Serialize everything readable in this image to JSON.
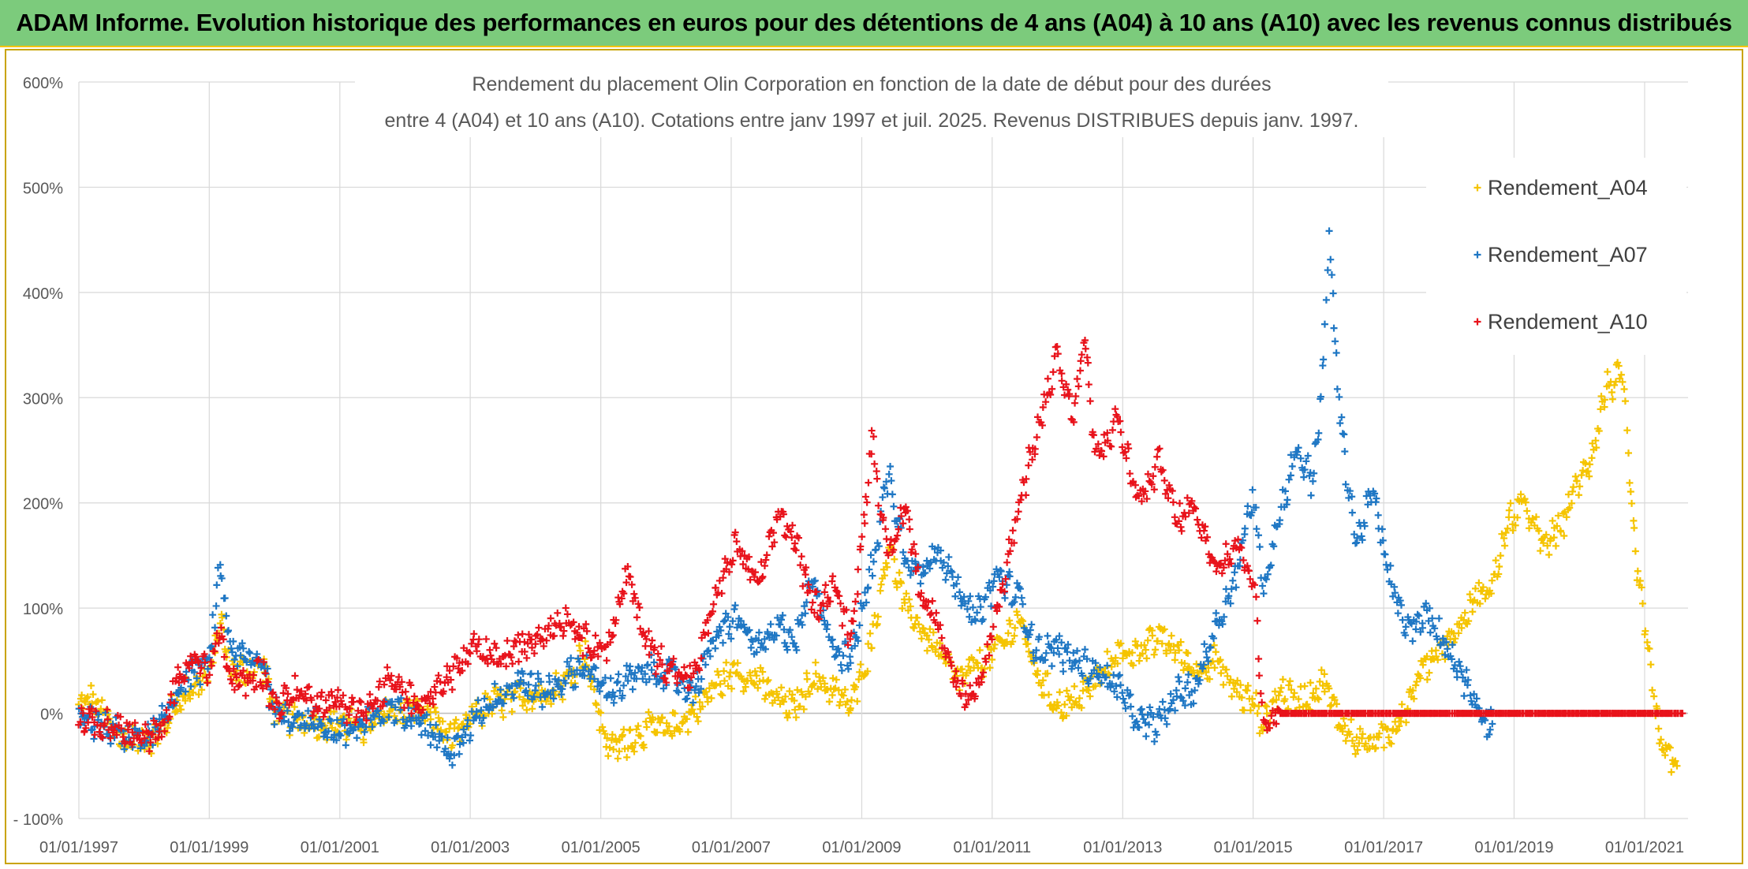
{
  "banner": {
    "title": "ADAM Informe. Evolution historique des performances en euros pour des détentions de 4 ans (A04) à 10 ans (A10) avec les revenus connus distribués"
  },
  "colors": {
    "banner_bg": "#7ccb7c",
    "A04": "#f5c400",
    "A07": "#1f77c4",
    "A10": "#e8131b",
    "grid": "#d9d9d9"
  },
  "chart_data": {
    "type": "scatter",
    "title_line1": "Rendement du placement Olin Corporation en fonction de la date de début pour des durées",
    "title_line2": "entre 4 (A04) et 10 ans (A10). Cotations entre janv 1997 et juil. 2025. Revenus DISTRIBUES depuis janv. 1997.",
    "xlabel": "",
    "ylabel": "",
    "xlim": [
      "1997-01-01",
      "2021-09-01"
    ],
    "ylim": [
      -100,
      600
    ],
    "grid": true,
    "legend_position": "top-right",
    "y_ticks": [
      "600%",
      "500%",
      "400%",
      "300%",
      "200%",
      "100%",
      "0%",
      "- 100%"
    ],
    "x_ticks": [
      "01/01/1997",
      "01/01/1999",
      "01/01/2001",
      "01/01/2003",
      "01/01/2005",
      "01/01/2007",
      "01/01/2009",
      "01/01/2011",
      "01/01/2013",
      "01/01/2015",
      "01/01/2017",
      "01/01/2019",
      "01/01/2021"
    ],
    "marker": "+",
    "series": [
      {
        "name": "Rendement_A04",
        "color": "#f5c400",
        "points": [
          [
            "1997-01-01",
            5
          ],
          [
            "1997-03-01",
            15
          ],
          [
            "1997-06-01",
            -5
          ],
          [
            "1997-09-01",
            -25
          ],
          [
            "1998-01-01",
            -25
          ],
          [
            "1998-04-01",
            -20
          ],
          [
            "1998-07-01",
            10
          ],
          [
            "1998-10-01",
            25
          ],
          [
            "1999-01-01",
            35
          ],
          [
            "1999-03-01",
            90
          ],
          [
            "1999-05-01",
            40
          ],
          [
            "1999-08-01",
            40
          ],
          [
            "1999-11-01",
            45
          ],
          [
            "2000-01-01",
            0
          ],
          [
            "2000-04-01",
            -5
          ],
          [
            "2000-08-01",
            -10
          ],
          [
            "2001-01-01",
            -10
          ],
          [
            "2001-06-01",
            -15
          ],
          [
            "2001-10-01",
            0
          ],
          [
            "2002-03-01",
            5
          ],
          [
            "2002-07-01",
            -10
          ],
          [
            "2002-10-01",
            -25
          ],
          [
            "2003-02-01",
            0
          ],
          [
            "2003-06-01",
            10
          ],
          [
            "2003-10-01",
            15
          ],
          [
            "2004-03-01",
            20
          ],
          [
            "2004-07-01",
            30
          ],
          [
            "2004-10-01",
            60
          ],
          [
            "2005-01-01",
            -10
          ],
          [
            "2005-03-01",
            -35
          ],
          [
            "2005-06-01",
            -25
          ],
          [
            "2005-10-01",
            -15
          ],
          [
            "2006-02-01",
            -15
          ],
          [
            "2006-06-01",
            0
          ],
          [
            "2006-10-01",
            25
          ],
          [
            "2007-02-01",
            40
          ],
          [
            "2007-06-01",
            30
          ],
          [
            "2007-10-01",
            10
          ],
          [
            "2008-01-01",
            5
          ],
          [
            "2008-04-01",
            35
          ],
          [
            "2008-08-01",
            20
          ],
          [
            "2008-11-01",
            5
          ],
          [
            "2009-03-01",
            70
          ],
          [
            "2009-06-01",
            160
          ],
          [
            "2009-09-01",
            100
          ],
          [
            "2009-12-01",
            80
          ],
          [
            "2010-03-01",
            60
          ],
          [
            "2010-07-01",
            30
          ],
          [
            "2010-10-01",
            45
          ],
          [
            "2011-02-01",
            60
          ],
          [
            "2011-06-01",
            90
          ],
          [
            "2011-09-01",
            40
          ],
          [
            "2012-01-01",
            5
          ],
          [
            "2012-04-01",
            10
          ],
          [
            "2012-08-01",
            30
          ],
          [
            "2012-12-01",
            55
          ],
          [
            "2013-04-01",
            60
          ],
          [
            "2013-08-01",
            70
          ],
          [
            "2013-11-01",
            60
          ],
          [
            "2014-02-01",
            40
          ],
          [
            "2014-06-01",
            50
          ],
          [
            "2014-10-01",
            20
          ],
          [
            "2015-01-01",
            10
          ],
          [
            "2015-03-01",
            -10
          ],
          [
            "2015-06-01",
            20
          ],
          [
            "2015-10-01",
            10
          ],
          [
            "2016-02-01",
            30
          ],
          [
            "2016-05-01",
            -10
          ],
          [
            "2016-09-01",
            -30
          ],
          [
            "2017-01-01",
            -25
          ],
          [
            "2017-04-01",
            -5
          ],
          [
            "2017-08-01",
            40
          ],
          [
            "2017-11-01",
            60
          ],
          [
            "2018-03-01",
            80
          ],
          [
            "2018-06-01",
            110
          ],
          [
            "2018-09-01",
            120
          ],
          [
            "2018-12-01",
            180
          ],
          [
            "2019-03-01",
            200
          ],
          [
            "2019-06-01",
            160
          ],
          [
            "2019-09-01",
            170
          ],
          [
            "2019-12-01",
            210
          ],
          [
            "2020-03-01",
            240
          ],
          [
            "2020-06-01",
            310
          ],
          [
            "2020-09-01",
            320
          ],
          [
            "2020-10-15",
            200
          ],
          [
            "2020-12-01",
            120
          ],
          [
            "2021-01-15",
            70
          ],
          [
            "2021-03-01",
            0
          ],
          [
            "2021-05-01",
            -40
          ],
          [
            "2021-07-01",
            -50
          ]
        ]
      },
      {
        "name": "Rendement_A07",
        "color": "#1f77c4",
        "points": [
          [
            "1997-01-01",
            -5
          ],
          [
            "1997-04-01",
            -10
          ],
          [
            "1997-08-01",
            -20
          ],
          [
            "1998-01-01",
            -25
          ],
          [
            "1998-04-01",
            -15
          ],
          [
            "1998-07-01",
            20
          ],
          [
            "1998-10-01",
            40
          ],
          [
            "1999-01-01",
            45
          ],
          [
            "1999-03-01",
            140
          ],
          [
            "1999-05-01",
            60
          ],
          [
            "1999-08-01",
            50
          ],
          [
            "1999-11-01",
            50
          ],
          [
            "2000-01-01",
            0
          ],
          [
            "2000-05-01",
            -5
          ],
          [
            "2000-09-01",
            -10
          ],
          [
            "2001-01-01",
            -20
          ],
          [
            "2001-06-01",
            -10
          ],
          [
            "2001-10-01",
            5
          ],
          [
            "2002-03-01",
            0
          ],
          [
            "2002-07-01",
            -25
          ],
          [
            "2002-10-01",
            -40
          ],
          [
            "2003-02-01",
            0
          ],
          [
            "2003-06-01",
            15
          ],
          [
            "2003-10-01",
            30
          ],
          [
            "2004-03-01",
            20
          ],
          [
            "2004-07-01",
            35
          ],
          [
            "2004-10-01",
            45
          ],
          [
            "2005-02-01",
            20
          ],
          [
            "2005-06-01",
            30
          ],
          [
            "2005-10-01",
            40
          ],
          [
            "2006-02-01",
            35
          ],
          [
            "2006-06-01",
            20
          ],
          [
            "2006-10-01",
            70
          ],
          [
            "2007-02-01",
            90
          ],
          [
            "2007-06-01",
            60
          ],
          [
            "2007-10-01",
            80
          ],
          [
            "2008-01-01",
            70
          ],
          [
            "2008-04-01",
            130
          ],
          [
            "2008-08-01",
            60
          ],
          [
            "2008-11-01",
            50
          ],
          [
            "2009-03-01",
            140
          ],
          [
            "2009-06-01",
            230
          ],
          [
            "2009-09-01",
            150
          ],
          [
            "2009-12-01",
            130
          ],
          [
            "2010-03-01",
            160
          ],
          [
            "2010-07-01",
            110
          ],
          [
            "2010-10-01",
            90
          ],
          [
            "2011-02-01",
            130
          ],
          [
            "2011-06-01",
            110
          ],
          [
            "2011-09-01",
            60
          ],
          [
            "2012-01-01",
            60
          ],
          [
            "2012-04-01",
            50
          ],
          [
            "2012-08-01",
            40
          ],
          [
            "2012-12-01",
            25
          ],
          [
            "2013-04-01",
            -10
          ],
          [
            "2013-08-01",
            -10
          ],
          [
            "2013-11-01",
            20
          ],
          [
            "2014-02-01",
            20
          ],
          [
            "2014-06-01",
            80
          ],
          [
            "2014-10-01",
            130
          ],
          [
            "2015-01-01",
            210
          ],
          [
            "2015-03-01",
            120
          ],
          [
            "2015-06-01",
            190
          ],
          [
            "2015-09-01",
            250
          ],
          [
            "2015-12-01",
            220
          ],
          [
            "2016-02-01",
            330
          ],
          [
            "2016-03-01",
            450
          ],
          [
            "2016-05-01",
            280
          ],
          [
            "2016-08-01",
            160
          ],
          [
            "2016-11-01",
            210
          ],
          [
            "2017-02-01",
            130
          ],
          [
            "2017-05-01",
            80
          ],
          [
            "2017-09-01",
            90
          ],
          [
            "2018-01-01",
            60
          ],
          [
            "2018-04-01",
            30
          ],
          [
            "2018-07-01",
            0
          ],
          [
            "2018-09-01",
            -10
          ]
        ]
      },
      {
        "name": "Rendement_A10",
        "color": "#e8131b",
        "points": [
          [
            "1997-01-01",
            -5
          ],
          [
            "1997-04-01",
            -10
          ],
          [
            "1997-08-01",
            -15
          ],
          [
            "1998-01-01",
            -25
          ],
          [
            "1998-04-01",
            -20
          ],
          [
            "1998-07-01",
            30
          ],
          [
            "1998-10-01",
            50
          ],
          [
            "1999-01-01",
            40
          ],
          [
            "1999-03-01",
            80
          ],
          [
            "1999-05-01",
            30
          ],
          [
            "1999-08-01",
            30
          ],
          [
            "1999-11-01",
            40
          ],
          [
            "2000-01-01",
            5
          ],
          [
            "2000-05-01",
            20
          ],
          [
            "2000-09-01",
            10
          ],
          [
            "2001-01-01",
            10
          ],
          [
            "2001-06-01",
            0
          ],
          [
            "2001-10-01",
            30
          ],
          [
            "2002-03-01",
            10
          ],
          [
            "2002-07-01",
            20
          ],
          [
            "2002-10-01",
            40
          ],
          [
            "2003-02-01",
            60
          ],
          [
            "2003-06-01",
            50
          ],
          [
            "2003-10-01",
            60
          ],
          [
            "2004-03-01",
            80
          ],
          [
            "2004-07-01",
            90
          ],
          [
            "2004-10-01",
            70
          ],
          [
            "2005-02-01",
            60
          ],
          [
            "2005-06-01",
            130
          ],
          [
            "2005-10-01",
            60
          ],
          [
            "2006-02-01",
            40
          ],
          [
            "2006-06-01",
            30
          ],
          [
            "2006-10-01",
            110
          ],
          [
            "2007-02-01",
            160
          ],
          [
            "2007-06-01",
            120
          ],
          [
            "2007-10-01",
            190
          ],
          [
            "2008-01-01",
            160
          ],
          [
            "2008-04-01",
            100
          ],
          [
            "2008-08-01",
            120
          ],
          [
            "2008-11-01",
            70
          ],
          [
            "2009-03-01",
            260
          ],
          [
            "2009-06-01",
            140
          ],
          [
            "2009-09-01",
            200
          ],
          [
            "2009-12-01",
            110
          ],
          [
            "2010-03-01",
            90
          ],
          [
            "2010-07-01",
            20
          ],
          [
            "2010-10-01",
            10
          ],
          [
            "2011-02-01",
            100
          ],
          [
            "2011-06-01",
            200
          ],
          [
            "2011-09-01",
            260
          ],
          [
            "2012-01-01",
            340
          ],
          [
            "2012-04-01",
            280
          ],
          [
            "2012-06-01",
            360
          ],
          [
            "2012-08-01",
            240
          ],
          [
            "2012-12-01",
            280
          ],
          [
            "2013-04-01",
            200
          ],
          [
            "2013-08-01",
            240
          ],
          [
            "2013-11-01",
            180
          ],
          [
            "2014-02-01",
            200
          ],
          [
            "2014-06-01",
            140
          ],
          [
            "2014-10-01",
            160
          ],
          [
            "2015-01-01",
            130
          ],
          [
            "2015-03-01",
            -10
          ],
          [
            "2015-06-01",
            0
          ],
          [
            "2016-01-01",
            0
          ],
          [
            "2017-01-01",
            0
          ],
          [
            "2018-01-01",
            0
          ],
          [
            "2019-01-01",
            0
          ],
          [
            "2020-01-01",
            0
          ],
          [
            "2021-01-01",
            0
          ],
          [
            "2021-08-01",
            0
          ]
        ]
      }
    ]
  }
}
